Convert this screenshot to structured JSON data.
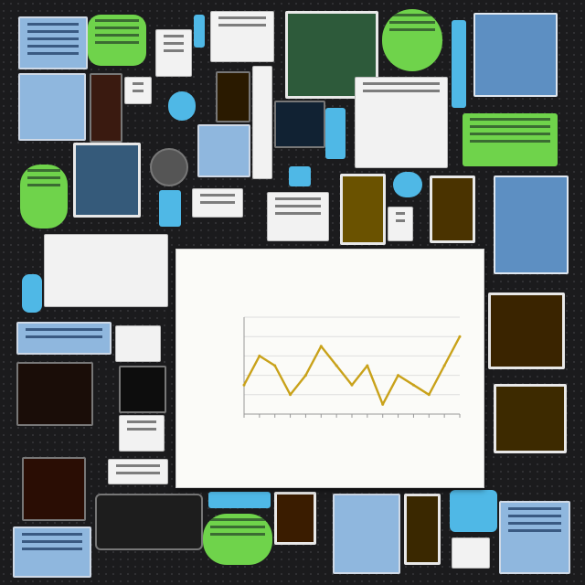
{
  "chart_data": {
    "type": "line",
    "title": "",
    "subtitle": "",
    "xlabel": "",
    "ylabel": "",
    "categories": [
      "",
      "",
      "",
      "",
      "",
      "",
      "",
      "",
      "",
      "",
      "",
      "",
      "",
      "",
      ""
    ],
    "series": [
      {
        "values": [
          3,
          6,
          5,
          2,
          4,
          7,
          5,
          3,
          5,
          1,
          4,
          3,
          2,
          5,
          8
        ],
        "color": "#c9a21a"
      }
    ],
    "ylim": [
      0,
      10
    ],
    "grid": true,
    "legend": "none"
  },
  "colors": {
    "background": "#1b1b1d",
    "note_green": "#6fd34b",
    "paper": "#f2f2f2",
    "blueprint": "#5d8fc2",
    "line": "#c9a21a"
  }
}
